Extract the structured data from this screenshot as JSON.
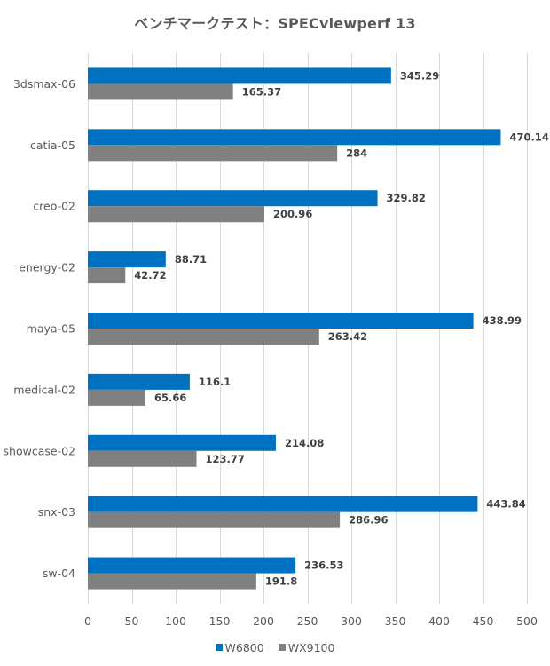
{
  "chart_data": {
    "type": "bar",
    "orientation": "horizontal",
    "title": "ベンチマークテスト：SPECviewperf 13",
    "xlabel": "",
    "ylabel": "",
    "categories": [
      "3dsmax-06",
      "catia-05",
      "creo-02",
      "energy-02",
      "maya-05",
      "medical-02",
      "showcase-02",
      "snx-03",
      "sw-04"
    ],
    "series": [
      {
        "name": "W6800",
        "color": "#0070c0",
        "values": [
          345.29,
          470.14,
          329.82,
          88.71,
          438.99,
          116.1,
          214.08,
          443.84,
          236.53
        ]
      },
      {
        "name": "WX9100",
        "color": "#808080",
        "values": [
          165.37,
          284,
          200.96,
          42.72,
          263.42,
          65.66,
          123.77,
          286.96,
          191.8
        ]
      }
    ],
    "xlim": [
      0,
      500
    ],
    "xticks": [
      0,
      50,
      100,
      150,
      200,
      250,
      300,
      350,
      400,
      450,
      500
    ],
    "grid": true,
    "legend_position": "bottom",
    "data_labels": true
  }
}
